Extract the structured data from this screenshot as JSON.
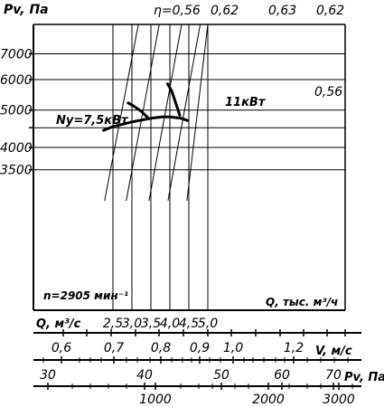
{
  "chart_data": {
    "type": "line",
    "y_axis_label": "Pv, Па",
    "y_ticks": [
      7000,
      6000,
      5000,
      4000,
      3500
    ],
    "y_scale": "log",
    "x_axis_label": "Q, тыс. м³/ч",
    "x_ticks": [
      "2,5",
      "3,0",
      "3,5",
      "4,0",
      "4,5",
      "5,0"
    ],
    "x_ticks_values": [
      2.5,
      3.0,
      3.5,
      4.0,
      4.5,
      5.0
    ],
    "efficiency_lines": [
      {
        "label": "η=0,56",
        "q_from": 2.28,
        "q_to": 3.17
      },
      {
        "label": "0,62",
        "q_from": 2.85,
        "q_to": 3.72
      },
      {
        "label": "0,63",
        "q_from": 3.45,
        "q_to": 4.31
      },
      {
        "label": "0,62",
        "q_from": 3.95,
        "q_to": 4.8
      },
      {
        "label": "0,56",
        "q_from": 4.45,
        "q_to": 5.0
      }
    ],
    "pressure_curve": {
      "name": "",
      "points": [
        {
          "q": 2.25,
          "pv": 4430
        },
        {
          "q": 2.5,
          "pv": 4530
        },
        {
          "q": 3.0,
          "pv": 4660
        },
        {
          "q": 3.5,
          "pv": 4760
        },
        {
          "q": 3.8,
          "pv": 4800
        },
        {
          "q": 4.0,
          "pv": 4800
        },
        {
          "q": 4.3,
          "pv": 4760
        },
        {
          "q": 4.46,
          "pv": 4700
        }
      ]
    },
    "power_curves": [
      {
        "label": "Ny=7,5кВт",
        "points": [
          {
            "q": 2.9,
            "pv": 5220
          },
          {
            "q": 3.05,
            "pv": 5120
          },
          {
            "q": 3.25,
            "pv": 4960
          },
          {
            "q": 3.42,
            "pv": 4780
          }
        ]
      },
      {
        "label": "11кВт",
        "points": [
          {
            "q": 3.94,
            "pv": 5850
          },
          {
            "q": 4.05,
            "pv": 5600
          },
          {
            "q": 4.16,
            "pv": 5200
          },
          {
            "q": 4.26,
            "pv": 4850
          }
        ]
      }
    ],
    "speed_label": "n=2905 мин⁻¹",
    "secondary_scales": [
      {
        "label": "Q, м³/с",
        "ticks": []
      },
      {
        "label": "V, м/с",
        "ticks": [
          "0,6",
          "0,7",
          "0,8",
          "0,9",
          "1,0",
          "1,2"
        ]
      },
      {
        "label": "Pv, Па",
        "ticks": [
          "30",
          "40",
          "50",
          "60",
          "70"
        ]
      },
      {
        "label": "",
        "ticks": [
          "1000",
          "2000",
          "3000"
        ]
      }
    ]
  }
}
